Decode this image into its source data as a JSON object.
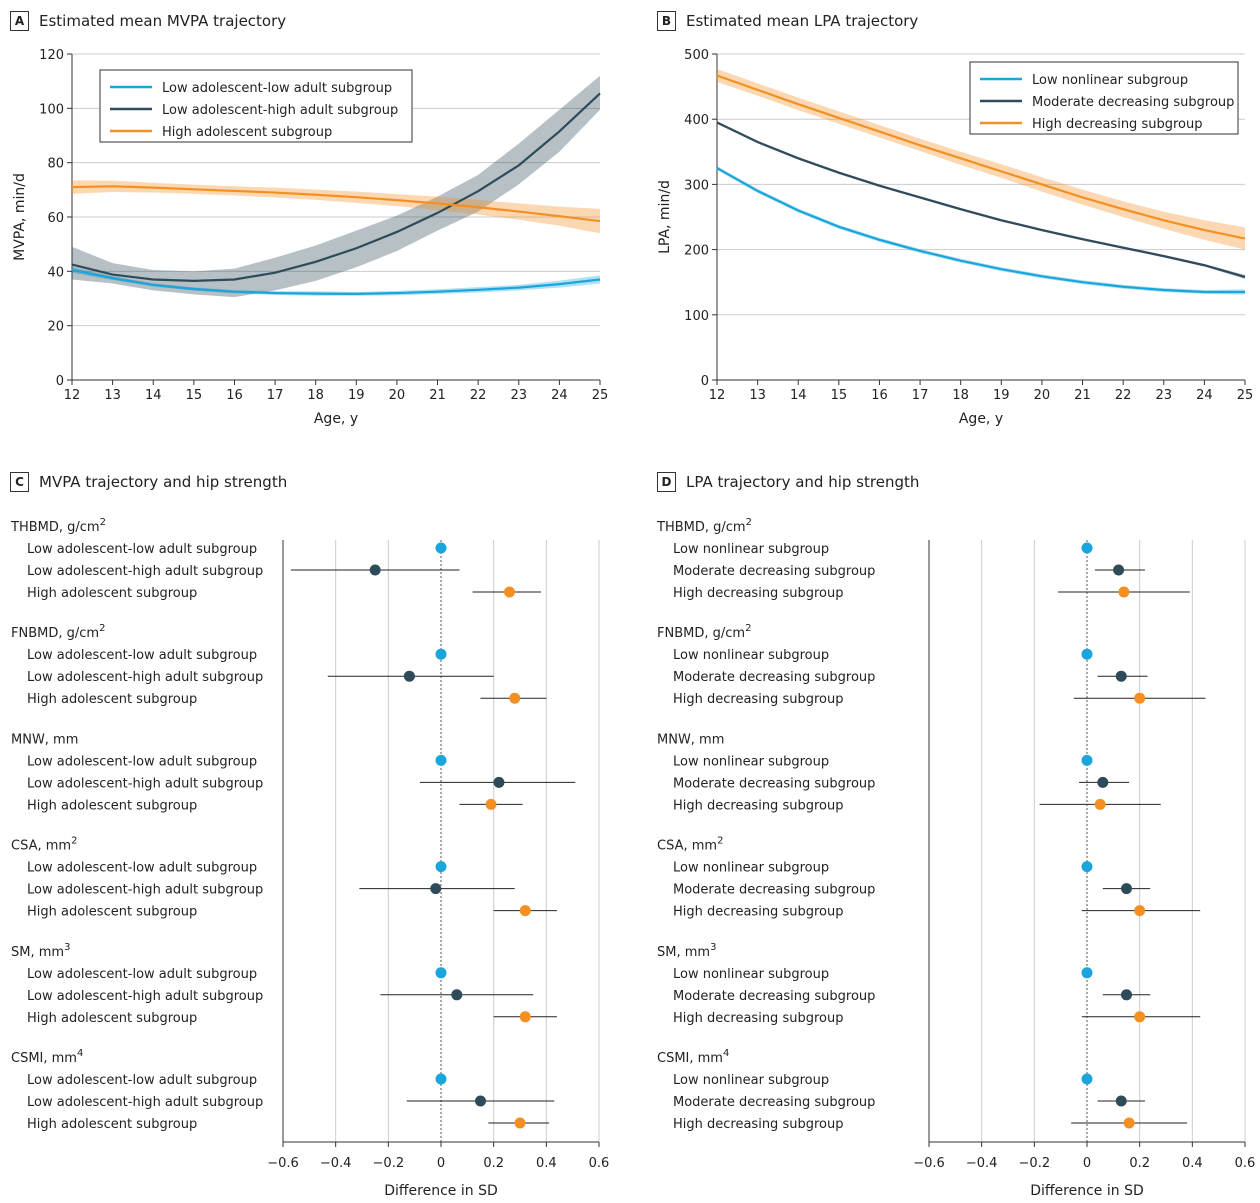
{
  "panels": {
    "A": {
      "letter": "A",
      "title": "Estimated mean MVPA trajectory"
    },
    "B": {
      "letter": "B",
      "title": "Estimated mean LPA trajectory"
    },
    "C": {
      "letter": "C",
      "title": "MVPA trajectory and hip strength"
    },
    "D": {
      "letter": "D",
      "title": "LPA trajectory and hip strength"
    }
  },
  "colors": {
    "light_blue": "#1aa5dd",
    "dark": "#2f4b5a",
    "orange": "#f39021",
    "grid": "#cccccc"
  },
  "chart_data": [
    {
      "type": "line",
      "panel": "A",
      "title": "Estimated mean MVPA trajectory",
      "xlabel": "Age, y",
      "ylabel": "MVPA, min/d",
      "xlim": [
        12,
        25
      ],
      "ylim": [
        0,
        120
      ],
      "xticks": [
        12,
        13,
        14,
        15,
        16,
        17,
        18,
        19,
        20,
        21,
        22,
        23,
        24,
        25
      ],
      "yticks": [
        0,
        20,
        40,
        60,
        80,
        100,
        120
      ],
      "grid": "horizontal",
      "legend_position": "top-left",
      "x": [
        12,
        13,
        14,
        15,
        16,
        17,
        18,
        19,
        20,
        21,
        22,
        23,
        24,
        25
      ],
      "series": [
        {
          "name": "Low adolescent-low adult subgroup",
          "color": "light_blue",
          "values": [
            40.5,
            37.5,
            35,
            33.5,
            32.5,
            32,
            31.8,
            31.7,
            32,
            32.5,
            33.2,
            34,
            35.3,
            37
          ],
          "lower": [
            39.5,
            36.8,
            34.4,
            32.9,
            31.9,
            31.3,
            31,
            31,
            31.2,
            31.6,
            32.2,
            33,
            34,
            35.5
          ],
          "upper": [
            41.5,
            38.2,
            35.6,
            34.1,
            33.1,
            32.7,
            32.6,
            32.4,
            32.8,
            33.4,
            34.2,
            35,
            36.6,
            38.5
          ]
        },
        {
          "name": "Low adolescent-high adult subgroup",
          "color": "dark",
          "values": [
            42.5,
            38.8,
            37,
            36.5,
            37,
            39.5,
            43.5,
            48.5,
            54.5,
            61.5,
            69.5,
            79,
            91.5,
            105.5
          ],
          "lower": [
            37,
            35.5,
            33,
            31.5,
            30.5,
            33,
            36.5,
            41.5,
            47.5,
            55,
            62,
            72,
            84,
            99.5
          ],
          "upper": [
            49,
            43,
            40.5,
            40,
            41,
            45,
            49.5,
            55,
            60.5,
            67.5,
            75.5,
            87,
            99.5,
            112
          ]
        },
        {
          "name": "High adolescent subgroup",
          "color": "orange",
          "values": [
            71,
            71.3,
            70.8,
            70.2,
            69.6,
            69,
            68.2,
            67.3,
            66.2,
            65,
            63.6,
            62,
            60.3,
            58.5
          ],
          "lower": [
            68.5,
            69.2,
            69,
            68.5,
            67.9,
            67.2,
            66.3,
            65.2,
            64,
            62.5,
            60.9,
            59,
            56.8,
            54
          ],
          "upper": [
            73.5,
            73.4,
            72.6,
            71.9,
            71.3,
            70.8,
            70.1,
            69.4,
            68.4,
            67.5,
            66.3,
            65,
            63.8,
            63
          ]
        }
      ]
    },
    {
      "type": "line",
      "panel": "B",
      "title": "Estimated mean LPA trajectory",
      "xlabel": "Age, y",
      "ylabel": "LPA, min/d",
      "xlim": [
        12,
        25
      ],
      "ylim": [
        0,
        500
      ],
      "xticks": [
        12,
        13,
        14,
        15,
        16,
        17,
        18,
        19,
        20,
        21,
        22,
        23,
        24,
        25
      ],
      "yticks": [
        0,
        100,
        200,
        300,
        400,
        500
      ],
      "grid": "horizontal",
      "legend_position": "top-right",
      "x": [
        12,
        13,
        14,
        15,
        16,
        17,
        18,
        19,
        20,
        21,
        22,
        23,
        24,
        25
      ],
      "series": [
        {
          "name": "Low nonlinear subgroup",
          "color": "light_blue",
          "values": [
            325,
            290,
            260,
            235,
            215,
            198,
            183,
            170,
            159,
            150,
            143,
            138,
            135,
            135
          ],
          "lower": [
            322,
            287,
            257,
            232,
            212,
            195,
            180,
            167,
            156,
            147,
            140,
            135,
            132,
            131
          ],
          "upper": [
            328,
            293,
            263,
            238,
            218,
            201,
            186,
            173,
            162,
            153,
            146,
            141,
            138,
            139
          ]
        },
        {
          "name": "Moderate decreasing subgroup",
          "color": "dark",
          "values": [
            395,
            365,
            340,
            318,
            298,
            280,
            262,
            245,
            230,
            216,
            203,
            190,
            176,
            158
          ],
          "lower": [
            393,
            363,
            338,
            316,
            296,
            278,
            260,
            243,
            228,
            214,
            201,
            188,
            174,
            155
          ],
          "upper": [
            397,
            367,
            342,
            320,
            300,
            282,
            264,
            247,
            232,
            218,
            205,
            192,
            178,
            161
          ]
        },
        {
          "name": "High decreasing subgroup",
          "color": "orange",
          "values": [
            467,
            445,
            423,
            402,
            381,
            360,
            340,
            320,
            300,
            280,
            262,
            245,
            230,
            217
          ],
          "lower": [
            457,
            436,
            414,
            393,
            372,
            351,
            330,
            310,
            289,
            269,
            250,
            232,
            215,
            200
          ],
          "upper": [
            477,
            455,
            433,
            412,
            391,
            370,
            350,
            331,
            311,
            292,
            274,
            258,
            245,
            234
          ]
        }
      ]
    },
    {
      "type": "scatter",
      "panel": "C",
      "title": "MVPA trajectory and hip strength",
      "xlabel": "Difference in SD",
      "xlim": [
        -0.6,
        0.6
      ],
      "xticks": [
        "-0.6",
        "-0.4",
        "-0.2",
        "0",
        "0.2",
        "0.4",
        "0.6"
      ],
      "grid": "vertical",
      "groups": [
        {
          "label": "THBMD, g/cm",
          "sup": "2",
          "rows": [
            {
              "name": "Low adolescent-low adult subgroup",
              "color": "light_blue",
              "est": 0,
              "lo": null,
              "hi": null
            },
            {
              "name": "Low adolescent-high adult subgroup",
              "color": "dark",
              "est": -0.25,
              "lo": -0.57,
              "hi": 0.07
            },
            {
              "name": "High adolescent subgroup",
              "color": "orange",
              "est": 0.26,
              "lo": 0.12,
              "hi": 0.38
            }
          ]
        },
        {
          "label": "FNBMD, g/cm",
          "sup": "2",
          "rows": [
            {
              "name": "Low adolescent-low adult subgroup",
              "color": "light_blue",
              "est": 0,
              "lo": null,
              "hi": null
            },
            {
              "name": "Low adolescent-high adult subgroup",
              "color": "dark",
              "est": -0.12,
              "lo": -0.43,
              "hi": 0.2
            },
            {
              "name": "High adolescent subgroup",
              "color": "orange",
              "est": 0.28,
              "lo": 0.15,
              "hi": 0.4
            }
          ]
        },
        {
          "label": "MNW, mm",
          "sup": "",
          "rows": [
            {
              "name": "Low adolescent-low adult subgroup",
              "color": "light_blue",
              "est": 0,
              "lo": null,
              "hi": null
            },
            {
              "name": "Low adolescent-high adult subgroup",
              "color": "dark",
              "est": 0.22,
              "lo": -0.08,
              "hi": 0.51
            },
            {
              "name": "High adolescent subgroup",
              "color": "orange",
              "est": 0.19,
              "lo": 0.07,
              "hi": 0.31
            }
          ]
        },
        {
          "label": "CSA, mm",
          "sup": "2",
          "rows": [
            {
              "name": "Low adolescent-low adult subgroup",
              "color": "light_blue",
              "est": 0,
              "lo": null,
              "hi": null
            },
            {
              "name": "Low adolescent-high adult subgroup",
              "color": "dark",
              "est": -0.02,
              "lo": -0.31,
              "hi": 0.28
            },
            {
              "name": "High adolescent subgroup",
              "color": "orange",
              "est": 0.32,
              "lo": 0.2,
              "hi": 0.44
            }
          ]
        },
        {
          "label": "SM, mm",
          "sup": "3",
          "rows": [
            {
              "name": "Low adolescent-low adult subgroup",
              "color": "light_blue",
              "est": 0,
              "lo": null,
              "hi": null
            },
            {
              "name": "Low adolescent-high adult subgroup",
              "color": "dark",
              "est": 0.06,
              "lo": -0.23,
              "hi": 0.35
            },
            {
              "name": "High adolescent subgroup",
              "color": "orange",
              "est": 0.32,
              "lo": 0.2,
              "hi": 0.44
            }
          ]
        },
        {
          "label": "CSMI, mm",
          "sup": "4",
          "rows": [
            {
              "name": "Low adolescent-low adult subgroup",
              "color": "light_blue",
              "est": 0,
              "lo": null,
              "hi": null
            },
            {
              "name": "Low adolescent-high adult subgroup",
              "color": "dark",
              "est": 0.15,
              "lo": -0.13,
              "hi": 0.43
            },
            {
              "name": "High adolescent subgroup",
              "color": "orange",
              "est": 0.3,
              "lo": 0.18,
              "hi": 0.41
            }
          ]
        }
      ]
    },
    {
      "type": "scatter",
      "panel": "D",
      "title": "LPA trajectory and hip strength",
      "xlabel": "Difference in SD",
      "xlim": [
        -0.6,
        0.6
      ],
      "xticks": [
        "-0.6",
        "-0.4",
        "-0.2",
        "0",
        "0.2",
        "0.4",
        "0.6"
      ],
      "grid": "vertical",
      "groups": [
        {
          "label": "THBMD, g/cm",
          "sup": "2",
          "rows": [
            {
              "name": "Low nonlinear subgroup",
              "color": "light_blue",
              "est": 0,
              "lo": null,
              "hi": null
            },
            {
              "name": "Moderate decreasing subgroup",
              "color": "dark",
              "est": 0.12,
              "lo": 0.03,
              "hi": 0.22
            },
            {
              "name": "High decreasing subgroup",
              "color": "orange",
              "est": 0.14,
              "lo": -0.11,
              "hi": 0.39
            }
          ]
        },
        {
          "label": "FNBMD, g/cm",
          "sup": "2",
          "rows": [
            {
              "name": "Low nonlinear subgroup",
              "color": "light_blue",
              "est": 0,
              "lo": null,
              "hi": null
            },
            {
              "name": "Moderate decreasing subgroup",
              "color": "dark",
              "est": 0.13,
              "lo": 0.04,
              "hi": 0.23
            },
            {
              "name": "High decreasing subgroup",
              "color": "orange",
              "est": 0.2,
              "lo": -0.05,
              "hi": 0.45
            }
          ]
        },
        {
          "label": "MNW, mm",
          "sup": "",
          "rows": [
            {
              "name": "Low nonlinear subgroup",
              "color": "light_blue",
              "est": 0,
              "lo": null,
              "hi": null
            },
            {
              "name": "Moderate decreasing subgroup",
              "color": "dark",
              "est": 0.06,
              "lo": -0.03,
              "hi": 0.16
            },
            {
              "name": "High decreasing subgroup",
              "color": "orange",
              "est": 0.05,
              "lo": -0.18,
              "hi": 0.28
            }
          ]
        },
        {
          "label": "CSA, mm",
          "sup": "2",
          "rows": [
            {
              "name": "Low nonlinear subgroup",
              "color": "light_blue",
              "est": 0,
              "lo": null,
              "hi": null
            },
            {
              "name": "Moderate decreasing subgroup",
              "color": "dark",
              "est": 0.15,
              "lo": 0.06,
              "hi": 0.24
            },
            {
              "name": "High decreasing subgroup",
              "color": "orange",
              "est": 0.2,
              "lo": -0.02,
              "hi": 0.43
            }
          ]
        },
        {
          "label": "SM, mm",
          "sup": "3",
          "rows": [
            {
              "name": "Low nonlinear subgroup",
              "color": "light_blue",
              "est": 0,
              "lo": null,
              "hi": null
            },
            {
              "name": "Moderate decreasing subgroup",
              "color": "dark",
              "est": 0.15,
              "lo": 0.06,
              "hi": 0.24
            },
            {
              "name": "High decreasing subgroup",
              "color": "orange",
              "est": 0.2,
              "lo": -0.02,
              "hi": 0.43
            }
          ]
        },
        {
          "label": "CSMI, mm",
          "sup": "4",
          "rows": [
            {
              "name": "Low nonlinear subgroup",
              "color": "light_blue",
              "est": 0,
              "lo": null,
              "hi": null
            },
            {
              "name": "Moderate decreasing subgroup",
              "color": "dark",
              "est": 0.13,
              "lo": 0.04,
              "hi": 0.22
            },
            {
              "name": "High decreasing subgroup",
              "color": "orange",
              "est": 0.16,
              "lo": -0.06,
              "hi": 0.38
            }
          ]
        }
      ]
    }
  ]
}
